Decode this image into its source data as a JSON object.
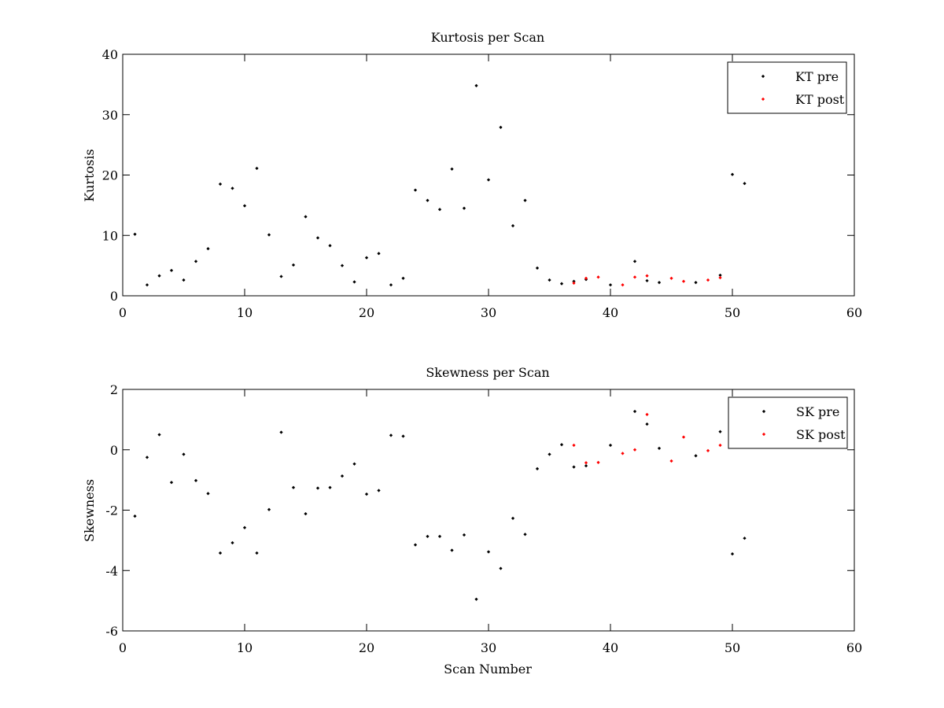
{
  "chart_data": [
    {
      "type": "scatter",
      "title": "Kurtosis per Scan",
      "xlabel": "",
      "ylabel": "Kurtosis",
      "xlim": [
        0,
        60
      ],
      "ylim": [
        0,
        40
      ],
      "xticks": [
        0,
        10,
        20,
        30,
        40,
        50,
        60
      ],
      "yticks": [
        0,
        10,
        20,
        30,
        40
      ],
      "legend_position": "top-right",
      "grid": false,
      "series": [
        {
          "name": "KT pre",
          "color": "#000000",
          "points": [
            [
              1,
              10.2
            ],
            [
              2,
              1.8
            ],
            [
              3,
              3.3
            ],
            [
              4,
              4.2
            ],
            [
              5,
              2.6
            ],
            [
              6,
              5.7
            ],
            [
              7,
              7.8
            ],
            [
              8,
              18.5
            ],
            [
              9,
              17.8
            ],
            [
              10,
              14.9
            ],
            [
              11,
              21.1
            ],
            [
              12,
              10.1
            ],
            [
              13,
              3.2
            ],
            [
              14,
              5.1
            ],
            [
              15,
              13.1
            ],
            [
              16,
              9.6
            ],
            [
              17,
              8.3
            ],
            [
              18,
              5.0
            ],
            [
              19,
              2.3
            ],
            [
              20,
              6.3
            ],
            [
              21,
              7.0
            ],
            [
              22,
              1.8
            ],
            [
              23,
              2.9
            ],
            [
              24,
              17.5
            ],
            [
              25,
              15.8
            ],
            [
              26,
              14.3
            ],
            [
              27,
              21.0
            ],
            [
              28,
              14.5
            ],
            [
              29,
              34.8
            ],
            [
              30,
              19.2
            ],
            [
              31,
              27.9
            ],
            [
              32,
              11.6
            ],
            [
              33,
              15.8
            ],
            [
              34,
              4.6
            ],
            [
              35,
              2.6
            ],
            [
              36,
              2.0
            ],
            [
              37,
              2.4
            ],
            [
              38,
              2.7
            ],
            [
              40,
              1.8
            ],
            [
              42,
              5.7
            ],
            [
              43,
              2.5
            ],
            [
              44,
              2.2
            ],
            [
              47,
              2.2
            ],
            [
              49,
              3.4
            ],
            [
              50,
              20.1
            ],
            [
              51,
              18.6
            ]
          ]
        },
        {
          "name": "KT post",
          "color": "#ff0000",
          "points": [
            [
              37,
              2.1
            ],
            [
              38,
              2.9
            ],
            [
              39,
              3.1
            ],
            [
              41,
              1.8
            ],
            [
              42,
              3.1
            ],
            [
              43,
              3.3
            ],
            [
              45,
              2.9
            ],
            [
              46,
              2.4
            ],
            [
              48,
              2.6
            ],
            [
              49,
              3.0
            ]
          ]
        }
      ]
    },
    {
      "type": "scatter",
      "title": "Skewness per Scan",
      "xlabel": "Scan Number",
      "ylabel": "Skewness",
      "xlim": [
        0,
        60
      ],
      "ylim": [
        -6,
        2
      ],
      "xticks": [
        0,
        10,
        20,
        30,
        40,
        50,
        60
      ],
      "yticks": [
        -6,
        -4,
        -2,
        0,
        2
      ],
      "legend_position": "top-right",
      "grid": false,
      "series": [
        {
          "name": "SK pre",
          "color": "#000000",
          "points": [
            [
              1,
              -2.2
            ],
            [
              2,
              -0.25
            ],
            [
              3,
              0.5
            ],
            [
              4,
              -1.08
            ],
            [
              5,
              -0.15
            ],
            [
              6,
              -1.02
            ],
            [
              7,
              -1.45
            ],
            [
              8,
              -3.42
            ],
            [
              9,
              -3.08
            ],
            [
              10,
              -2.58
            ],
            [
              11,
              -3.42
            ],
            [
              12,
              -1.98
            ],
            [
              13,
              0.58
            ],
            [
              14,
              -1.25
            ],
            [
              15,
              -2.12
            ],
            [
              16,
              -1.27
            ],
            [
              17,
              -1.25
            ],
            [
              18,
              -0.87
            ],
            [
              19,
              -0.47
            ],
            [
              20,
              -1.47
            ],
            [
              21,
              -1.35
            ],
            [
              22,
              0.48
            ],
            [
              23,
              0.45
            ],
            [
              24,
              -3.15
            ],
            [
              25,
              -2.87
            ],
            [
              26,
              -2.87
            ],
            [
              27,
              -3.33
            ],
            [
              28,
              -2.82
            ],
            [
              29,
              -4.95
            ],
            [
              30,
              -3.38
            ],
            [
              31,
              -3.93
            ],
            [
              32,
              -2.27
            ],
            [
              33,
              -2.8
            ],
            [
              34,
              -0.63
            ],
            [
              35,
              -0.15
            ],
            [
              36,
              0.17
            ],
            [
              37,
              -0.57
            ],
            [
              38,
              -0.53
            ],
            [
              40,
              0.15
            ],
            [
              42,
              1.27
            ],
            [
              43,
              0.85
            ],
            [
              44,
              0.05
            ],
            [
              47,
              -0.2
            ],
            [
              49,
              0.6
            ],
            [
              50,
              -3.45
            ],
            [
              51,
              -2.93
            ]
          ]
        },
        {
          "name": "SK post",
          "color": "#ff0000",
          "points": [
            [
              37,
              0.15
            ],
            [
              38,
              -0.43
            ],
            [
              39,
              -0.42
            ],
            [
              41,
              -0.12
            ],
            [
              42,
              0.0
            ],
            [
              43,
              1.17
            ],
            [
              45,
              -0.37
            ],
            [
              46,
              0.42
            ],
            [
              48,
              -0.03
            ],
            [
              49,
              0.15
            ]
          ]
        }
      ]
    }
  ]
}
